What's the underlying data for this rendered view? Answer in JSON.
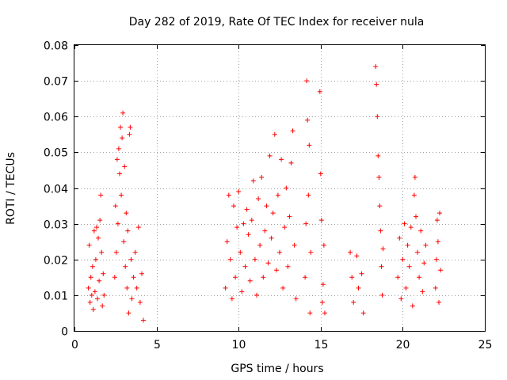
{
  "chart_data": {
    "type": "scatter",
    "title": "Day 282 of 2019, Rate Of TEC Index for receiver nula",
    "xlabel": "GPS time / hours",
    "ylabel": "ROTI / TECUs",
    "xlim": [
      0,
      25
    ],
    "ylim": [
      0,
      0.08
    ],
    "xticks": [
      "0",
      "5",
      "10",
      "15",
      "20",
      "25"
    ],
    "yticks": [
      "0",
      "0.01",
      "0.02",
      "0.03",
      "0.04",
      "0.05",
      "0.06",
      "0.07",
      "0.08"
    ],
    "grid": true,
    "marker": "+",
    "color": "#ff0000",
    "series": [
      {
        "points": [
          [
            0.85,
            0.012
          ],
          [
            0.9,
            0.024
          ],
          [
            0.95,
            0.008
          ],
          [
            1.0,
            0.015
          ],
          [
            1.05,
            0.01
          ],
          [
            1.1,
            0.018
          ],
          [
            1.15,
            0.006
          ],
          [
            1.2,
            0.028
          ],
          [
            1.25,
            0.011
          ],
          [
            1.3,
            0.02
          ],
          [
            1.35,
            0.029
          ],
          [
            1.4,
            0.009
          ],
          [
            1.45,
            0.026
          ],
          [
            1.5,
            0.014
          ],
          [
            1.55,
            0.031
          ],
          [
            1.6,
            0.038
          ],
          [
            1.65,
            0.022
          ],
          [
            1.7,
            0.007
          ],
          [
            1.75,
            0.016
          ],
          [
            1.8,
            0.01
          ],
          [
            2.45,
            0.015
          ],
          [
            2.5,
            0.035
          ],
          [
            2.55,
            0.022
          ],
          [
            2.6,
            0.048
          ],
          [
            2.65,
            0.03
          ],
          [
            2.7,
            0.051
          ],
          [
            2.75,
            0.044
          ],
          [
            2.8,
            0.057
          ],
          [
            2.85,
            0.038
          ],
          [
            2.9,
            0.054
          ],
          [
            2.95,
            0.061
          ],
          [
            3.0,
            0.025
          ],
          [
            3.05,
            0.046
          ],
          [
            3.1,
            0.018
          ],
          [
            3.15,
            0.033
          ],
          [
            3.2,
            0.012
          ],
          [
            3.25,
            0.028
          ],
          [
            3.3,
            0.005
          ],
          [
            3.35,
            0.055
          ],
          [
            3.4,
            0.057
          ],
          [
            3.45,
            0.02
          ],
          [
            3.5,
            0.009
          ],
          [
            3.6,
            0.015
          ],
          [
            3.7,
            0.022
          ],
          [
            3.8,
            0.012
          ],
          [
            3.9,
            0.029
          ],
          [
            4.0,
            0.008
          ],
          [
            4.1,
            0.016
          ],
          [
            4.2,
            0.003
          ],
          [
            9.2,
            0.012
          ],
          [
            9.3,
            0.025
          ],
          [
            9.4,
            0.038
          ],
          [
            9.5,
            0.02
          ],
          [
            9.6,
            0.009
          ],
          [
            9.7,
            0.035
          ],
          [
            9.8,
            0.015
          ],
          [
            9.9,
            0.029
          ],
          [
            10.0,
            0.039
          ],
          [
            10.1,
            0.022
          ],
          [
            10.2,
            0.011
          ],
          [
            10.3,
            0.03
          ],
          [
            10.4,
            0.018
          ],
          [
            10.5,
            0.034
          ],
          [
            10.6,
            0.027
          ],
          [
            10.7,
            0.014
          ],
          [
            10.8,
            0.031
          ],
          [
            10.9,
            0.042
          ],
          [
            11.0,
            0.02
          ],
          [
            11.1,
            0.01
          ],
          [
            11.2,
            0.037
          ],
          [
            11.3,
            0.024
          ],
          [
            11.4,
            0.043
          ],
          [
            11.5,
            0.015
          ],
          [
            11.6,
            0.028
          ],
          [
            11.7,
            0.035
          ],
          [
            11.8,
            0.019
          ],
          [
            11.9,
            0.049
          ],
          [
            12.0,
            0.026
          ],
          [
            12.1,
            0.033
          ],
          [
            12.2,
            0.055
          ],
          [
            12.3,
            0.017
          ],
          [
            12.4,
            0.038
          ],
          [
            12.5,
            0.022
          ],
          [
            12.6,
            0.048
          ],
          [
            12.7,
            0.012
          ],
          [
            12.8,
            0.029
          ],
          [
            12.9,
            0.04
          ],
          [
            13.0,
            0.018
          ],
          [
            13.1,
            0.032
          ],
          [
            13.2,
            0.047
          ],
          [
            13.3,
            0.056
          ],
          [
            13.4,
            0.024
          ],
          [
            13.5,
            0.009
          ],
          [
            14.05,
            0.015
          ],
          [
            14.1,
            0.03
          ],
          [
            14.15,
            0.07
          ],
          [
            14.2,
            0.059
          ],
          [
            14.25,
            0.038
          ],
          [
            14.3,
            0.052
          ],
          [
            14.35,
            0.005
          ],
          [
            14.4,
            0.022
          ],
          [
            14.95,
            0.067
          ],
          [
            15.0,
            0.044
          ],
          [
            15.05,
            0.031
          ],
          [
            15.1,
            0.008
          ],
          [
            15.15,
            0.013
          ],
          [
            15.2,
            0.024
          ],
          [
            15.25,
            0.005
          ],
          [
            16.8,
            0.022
          ],
          [
            16.9,
            0.015
          ],
          [
            17.0,
            0.008
          ],
          [
            17.2,
            0.021
          ],
          [
            17.3,
            0.012
          ],
          [
            17.5,
            0.016
          ],
          [
            17.6,
            0.005
          ],
          [
            18.35,
            0.074
          ],
          [
            18.4,
            0.069
          ],
          [
            18.45,
            0.06
          ],
          [
            18.5,
            0.049
          ],
          [
            18.55,
            0.043
          ],
          [
            18.6,
            0.035
          ],
          [
            18.65,
            0.028
          ],
          [
            18.7,
            0.018
          ],
          [
            18.75,
            0.01
          ],
          [
            18.8,
            0.023
          ],
          [
            19.7,
            0.015
          ],
          [
            19.8,
            0.026
          ],
          [
            19.9,
            0.009
          ],
          [
            20.0,
            0.02
          ],
          [
            20.1,
            0.03
          ],
          [
            20.2,
            0.012
          ],
          [
            20.3,
            0.024
          ],
          [
            20.4,
            0.018
          ],
          [
            20.5,
            0.029
          ],
          [
            20.6,
            0.007
          ],
          [
            20.7,
            0.038
          ],
          [
            20.75,
            0.043
          ],
          [
            20.8,
            0.032
          ],
          [
            20.9,
            0.022
          ],
          [
            21.0,
            0.015
          ],
          [
            21.1,
            0.028
          ],
          [
            21.2,
            0.011
          ],
          [
            21.3,
            0.019
          ],
          [
            21.4,
            0.024
          ],
          [
            22.0,
            0.012
          ],
          [
            22.05,
            0.02
          ],
          [
            22.1,
            0.031
          ],
          [
            22.15,
            0.025
          ],
          [
            22.2,
            0.008
          ],
          [
            22.25,
            0.033
          ],
          [
            22.3,
            0.017
          ]
        ]
      }
    ]
  }
}
